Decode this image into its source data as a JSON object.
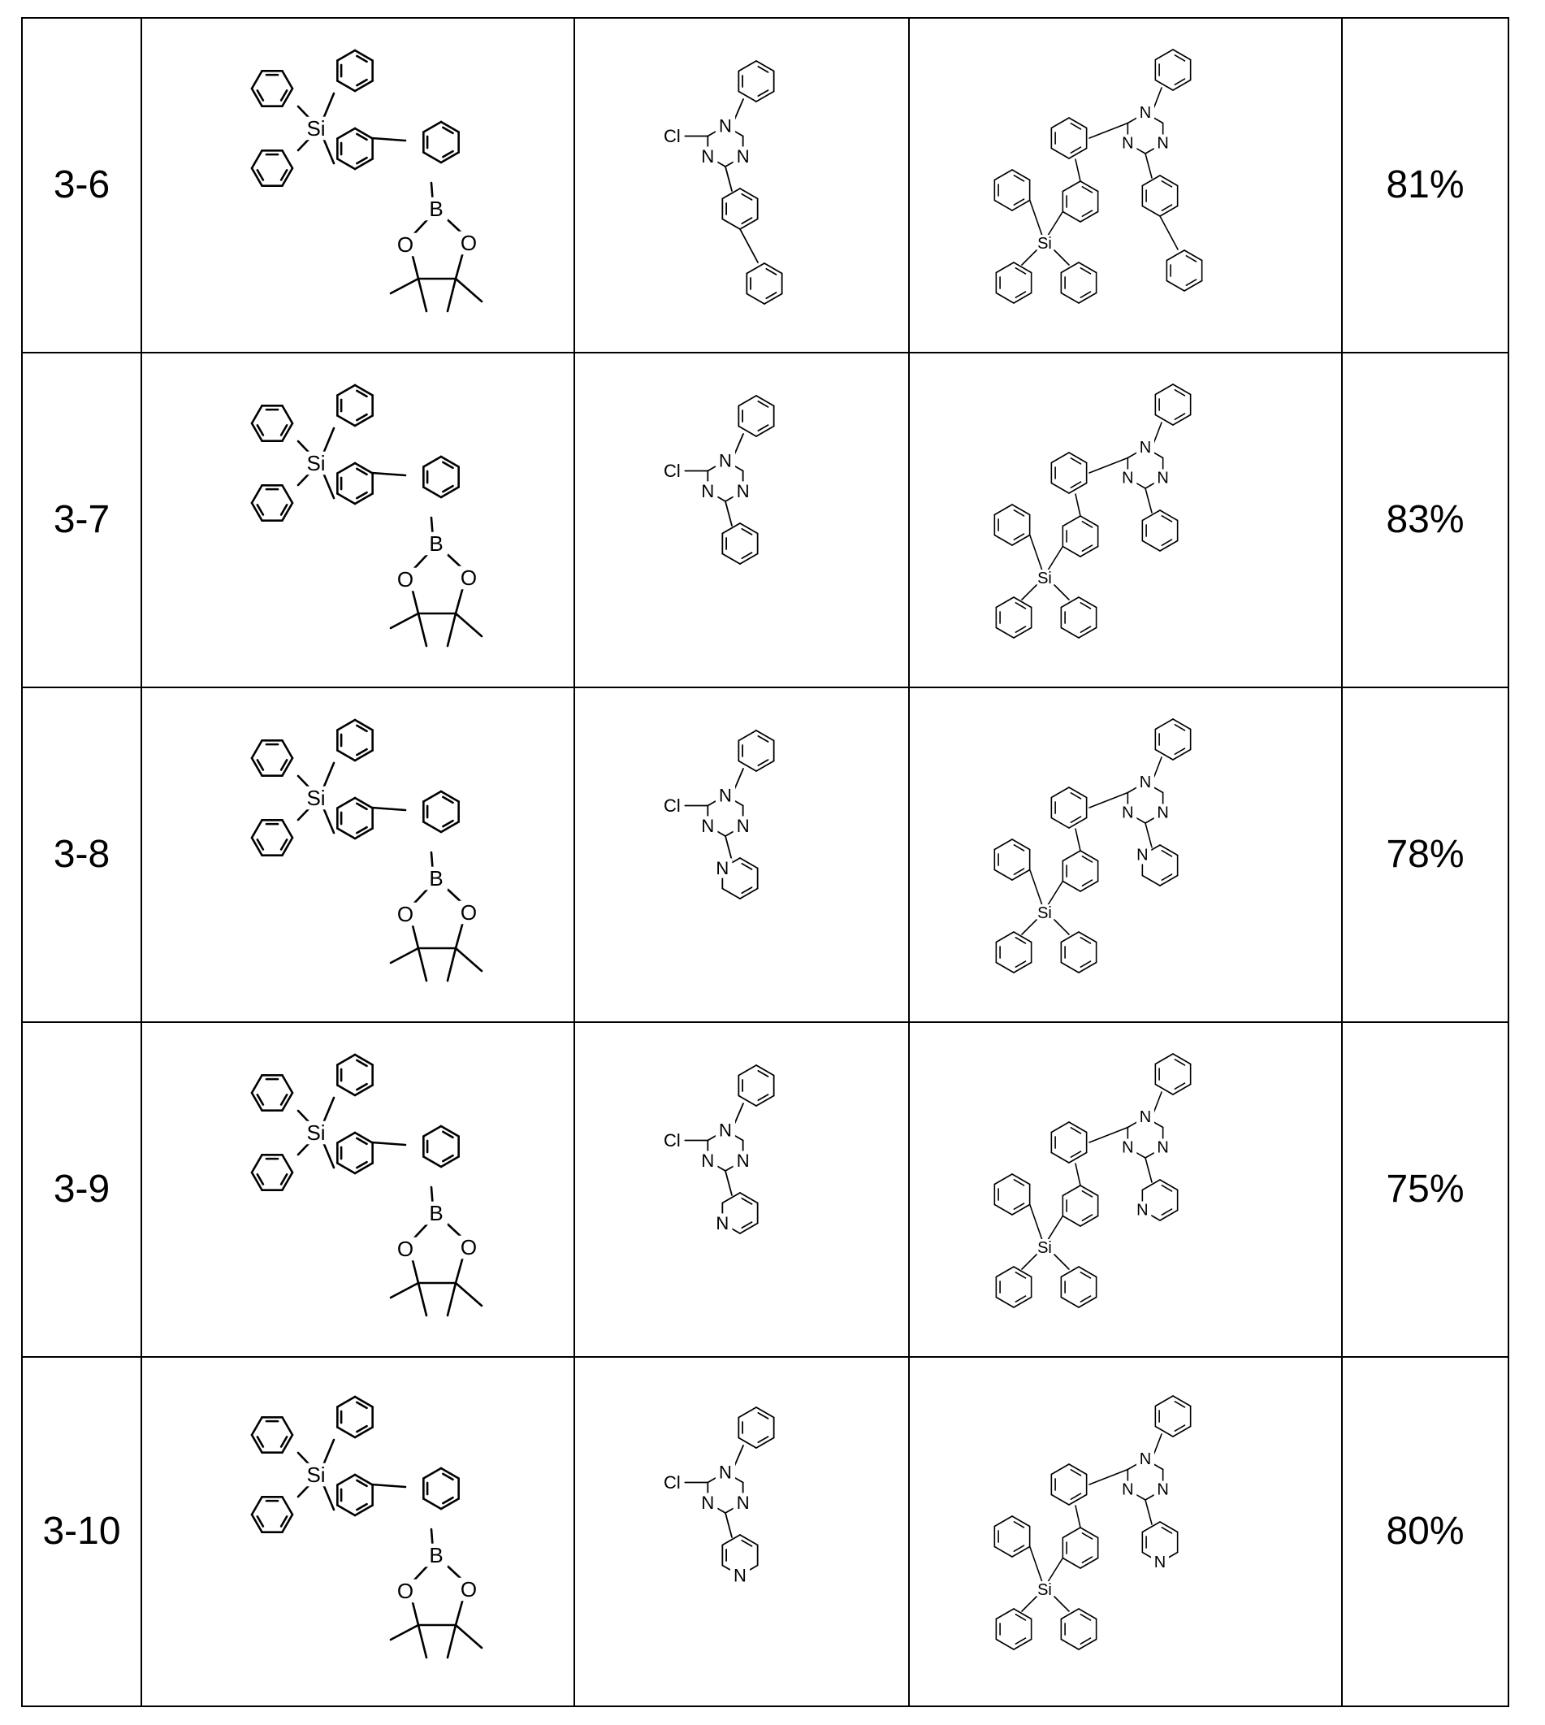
{
  "table": {
    "rows": [
      {
        "id": "3-6",
        "reactant_a": {
          "si": "Si",
          "b": "B",
          "o1": "O",
          "o2": "O"
        },
        "reactant_b": {
          "cl": "Cl",
          "n1": "N",
          "n2": "N",
          "n3": "N",
          "substituent": "biphenyl-4-yl"
        },
        "product": {
          "si": "Si",
          "n1": "N",
          "n2": "N",
          "n3": "N",
          "substituent": "biphenyl-4-yl"
        },
        "yield": "81%"
      },
      {
        "id": "3-7",
        "reactant_a": {
          "si": "Si",
          "b": "B",
          "o1": "O",
          "o2": "O"
        },
        "reactant_b": {
          "cl": "Cl",
          "n1": "N",
          "n2": "N",
          "n3": "N",
          "substituent": "phenyl"
        },
        "product": {
          "si": "Si",
          "n1": "N",
          "n2": "N",
          "n3": "N",
          "substituent": "phenyl"
        },
        "yield": "83%"
      },
      {
        "id": "3-8",
        "reactant_a": {
          "si": "Si",
          "b": "B",
          "o1": "O",
          "o2": "O"
        },
        "reactant_b": {
          "cl": "Cl",
          "n1": "N",
          "n2": "N",
          "n3": "N",
          "substituent": "pyridin-2-yl",
          "pyN": "N"
        },
        "product": {
          "si": "Si",
          "n1": "N",
          "n2": "N",
          "n3": "N",
          "substituent": "pyridin-2-yl",
          "pyN": "N"
        },
        "yield": "78%"
      },
      {
        "id": "3-9",
        "reactant_a": {
          "si": "Si",
          "b": "B",
          "o1": "O",
          "o2": "O"
        },
        "reactant_b": {
          "cl": "Cl",
          "n1": "N",
          "n2": "N",
          "n3": "N",
          "substituent": "pyridin-3-yl",
          "pyN": "N"
        },
        "product": {
          "si": "Si",
          "n1": "N",
          "n2": "N",
          "n3": "N",
          "substituent": "pyridin-3-yl",
          "pyN": "N"
        },
        "yield": "75%"
      },
      {
        "id": "3-10",
        "reactant_a": {
          "si": "Si",
          "b": "B",
          "o1": "O",
          "o2": "O"
        },
        "reactant_b": {
          "cl": "Cl",
          "n1": "N",
          "n2": "N",
          "n3": "N",
          "substituent": "pyridin-4-yl",
          "pyN": "N"
        },
        "product": {
          "si": "Si",
          "n1": "N",
          "n2": "N",
          "n3": "N",
          "substituent": "pyridin-4-yl",
          "pyN": "N"
        },
        "yield": "80%"
      }
    ]
  }
}
